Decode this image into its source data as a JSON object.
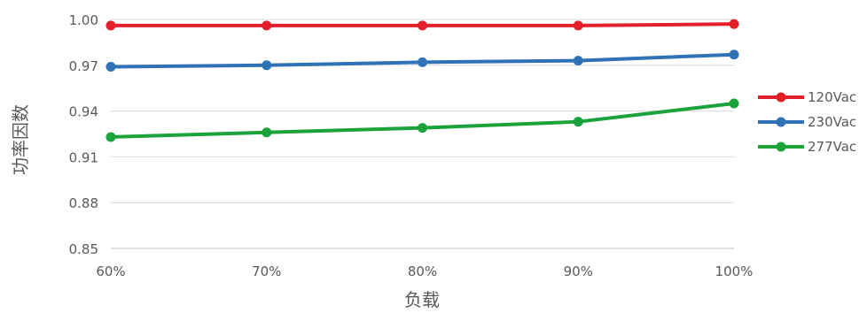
{
  "chart_data": {
    "type": "line",
    "title": "",
    "xlabel": "负载",
    "ylabel": "功率因数",
    "categories": [
      "60%",
      "70%",
      "80%",
      "90%",
      "100%"
    ],
    "y_ticks": [
      "0.85",
      "0.88",
      "0.91",
      "0.94",
      "0.97",
      "1.00"
    ],
    "ylim": [
      0.85,
      1.0
    ],
    "grid": "horizontal",
    "legend_position": "right",
    "series": [
      {
        "name": "120Vac",
        "color": "#e3202a",
        "values": [
          0.996,
          0.996,
          0.996,
          0.996,
          0.997
        ]
      },
      {
        "name": "230Vac",
        "color": "#2f73b6",
        "values": [
          0.969,
          0.97,
          0.972,
          0.973,
          0.977
        ]
      },
      {
        "name": "277Vac",
        "color": "#1aa33a",
        "values": [
          0.923,
          0.926,
          0.929,
          0.933,
          0.945
        ]
      }
    ]
  }
}
